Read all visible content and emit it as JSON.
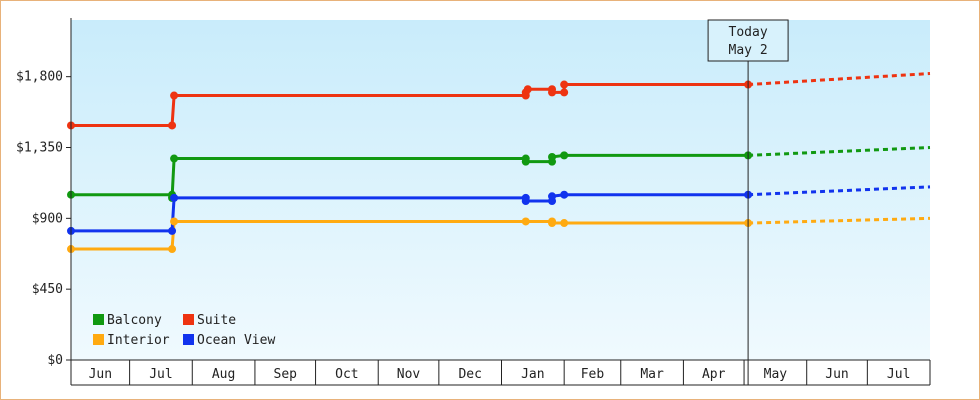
{
  "chart_data": {
    "type": "line",
    "title": "",
    "xlabel": "",
    "ylabel": "",
    "ylim": [
      0,
      2160
    ],
    "y_ticks": [
      "$0",
      "$450",
      "$900",
      "$1,350",
      "$1,800"
    ],
    "y_tick_values": [
      0,
      450,
      900,
      1350,
      1800
    ],
    "x_start": "2024-06-01",
    "x_end": "2025-07-31",
    "months": [
      {
        "label": "Jun",
        "start": "2024-06-01",
        "end": "2024-06-30"
      },
      {
        "label": "Jul",
        "start": "2024-06-30",
        "end": "2024-07-31"
      },
      {
        "label": "Aug",
        "start": "2024-07-31",
        "end": "2024-08-31"
      },
      {
        "label": "Sep",
        "start": "2024-08-31",
        "end": "2024-09-30"
      },
      {
        "label": "Oct",
        "start": "2024-09-30",
        "end": "2024-10-31"
      },
      {
        "label": "Nov",
        "start": "2024-10-31",
        "end": "2024-11-30"
      },
      {
        "label": "Dec",
        "start": "2024-11-30",
        "end": "2024-12-31"
      },
      {
        "label": "Jan",
        "start": "2024-12-31",
        "end": "2025-01-31"
      },
      {
        "label": "Feb",
        "start": "2025-01-31",
        "end": "2025-02-28"
      },
      {
        "label": "Mar",
        "start": "2025-02-28",
        "end": "2025-03-31"
      },
      {
        "label": "Apr",
        "start": "2025-03-31",
        "end": "2025-04-30"
      },
      {
        "label": "May",
        "start": "2025-04-30",
        "end": "2025-05-31"
      },
      {
        "label": "Jun",
        "start": "2025-05-31",
        "end": "2025-06-30"
      },
      {
        "label": "Jul",
        "start": "2025-06-30",
        "end": "2025-07-31"
      }
    ],
    "today": {
      "line1": "Today",
      "line2": "May 2",
      "date": "2025-05-02"
    },
    "grid": false,
    "legend_position": "bottom-left",
    "series": [
      {
        "name": "Balcony",
        "color": "#119911",
        "points": [
          [
            "2024-06-01",
            1050
          ],
          [
            "2024-07-21",
            1050
          ],
          [
            "2024-07-21",
            1030
          ],
          [
            "2024-07-22",
            1280
          ],
          [
            "2025-01-12",
            1280
          ],
          [
            "2025-01-12",
            1260
          ],
          [
            "2025-01-25",
            1260
          ],
          [
            "2025-01-25",
            1290
          ],
          [
            "2025-01-31",
            1300
          ],
          [
            "2025-05-02",
            1300
          ]
        ],
        "projection": [
          [
            "2025-05-02",
            1300
          ],
          [
            "2025-07-31",
            1350
          ]
        ]
      },
      {
        "name": "Suite",
        "color": "#ee3311",
        "points": [
          [
            "2024-06-01",
            1490
          ],
          [
            "2024-07-21",
            1490
          ],
          [
            "2024-07-22",
            1680
          ],
          [
            "2025-01-12",
            1680
          ],
          [
            "2025-01-12",
            1700
          ],
          [
            "2025-01-13",
            1720
          ],
          [
            "2025-01-25",
            1720
          ],
          [
            "2025-01-25",
            1700
          ],
          [
            "2025-01-31",
            1700
          ],
          [
            "2025-01-31",
            1750
          ],
          [
            "2025-05-02",
            1750
          ]
        ],
        "projection": [
          [
            "2025-05-02",
            1750
          ],
          [
            "2025-07-31",
            1820
          ]
        ]
      },
      {
        "name": "Interior",
        "color": "#ffaa11",
        "points": [
          [
            "2024-06-01",
            705
          ],
          [
            "2024-07-21",
            705
          ],
          [
            "2024-07-22",
            880
          ],
          [
            "2025-01-12",
            880
          ],
          [
            "2025-01-25",
            880
          ],
          [
            "2025-01-25",
            870
          ],
          [
            "2025-01-31",
            870
          ],
          [
            "2025-05-02",
            870
          ]
        ],
        "projection": [
          [
            "2025-05-02",
            870
          ],
          [
            "2025-07-31",
            900
          ]
        ]
      },
      {
        "name": "Ocean View",
        "color": "#1133ee",
        "points": [
          [
            "2024-06-01",
            820
          ],
          [
            "2024-07-21",
            820
          ],
          [
            "2024-07-22",
            1030
          ],
          [
            "2025-01-12",
            1030
          ],
          [
            "2025-01-12",
            1010
          ],
          [
            "2025-01-25",
            1010
          ],
          [
            "2025-01-25",
            1040
          ],
          [
            "2025-01-31",
            1050
          ],
          [
            "2025-05-02",
            1050
          ]
        ],
        "projection": [
          [
            "2025-05-02",
            1050
          ],
          [
            "2025-07-31",
            1100
          ]
        ]
      }
    ],
    "markers": {
      "Balcony": [
        [
          "2024-06-01",
          1050
        ],
        [
          "2024-07-21",
          1050
        ],
        [
          "2024-07-21",
          1030
        ],
        [
          "2024-07-22",
          1280
        ],
        [
          "2025-01-12",
          1280
        ],
        [
          "2025-01-12",
          1260
        ],
        [
          "2025-01-25",
          1260
        ],
        [
          "2025-01-25",
          1290
        ],
        [
          "2025-01-31",
          1300
        ],
        [
          "2025-05-02",
          1300
        ]
      ],
      "Suite": [
        [
          "2024-06-01",
          1490
        ],
        [
          "2024-07-21",
          1490
        ],
        [
          "2024-07-22",
          1680
        ],
        [
          "2025-01-12",
          1680
        ],
        [
          "2025-01-12",
          1700
        ],
        [
          "2025-01-13",
          1720
        ],
        [
          "2025-01-25",
          1720
        ],
        [
          "2025-01-25",
          1700
        ],
        [
          "2025-01-31",
          1700
        ],
        [
          "2025-01-31",
          1750
        ],
        [
          "2025-05-02",
          1750
        ]
      ],
      "Interior": [
        [
          "2024-06-01",
          705
        ],
        [
          "2024-07-21",
          705
        ],
        [
          "2024-07-22",
          880
        ],
        [
          "2025-01-12",
          880
        ],
        [
          "2025-01-25",
          880
        ],
        [
          "2025-01-25",
          870
        ],
        [
          "2025-01-31",
          870
        ],
        [
          "2025-05-02",
          870
        ]
      ],
      "Ocean View": [
        [
          "2024-06-01",
          820
        ],
        [
          "2024-07-21",
          820
        ],
        [
          "2024-07-22",
          1030
        ],
        [
          "2025-01-12",
          1030
        ],
        [
          "2025-01-12",
          1010
        ],
        [
          "2025-01-25",
          1010
        ],
        [
          "2025-01-25",
          1040
        ],
        [
          "2025-01-31",
          1050
        ],
        [
          "2025-05-02",
          1050
        ]
      ]
    },
    "legend": [
      {
        "name": "Balcony",
        "color": "#119911"
      },
      {
        "name": "Suite",
        "color": "#ee3311"
      },
      {
        "name": "Interior",
        "color": "#ffaa11"
      },
      {
        "name": "Ocean View",
        "color": "#1133ee"
      }
    ],
    "colors": {
      "plot_bg_top": "#c9ecfb",
      "plot_bg_bottom": "#f0fafe",
      "frame_border": "#e8b27a"
    }
  }
}
